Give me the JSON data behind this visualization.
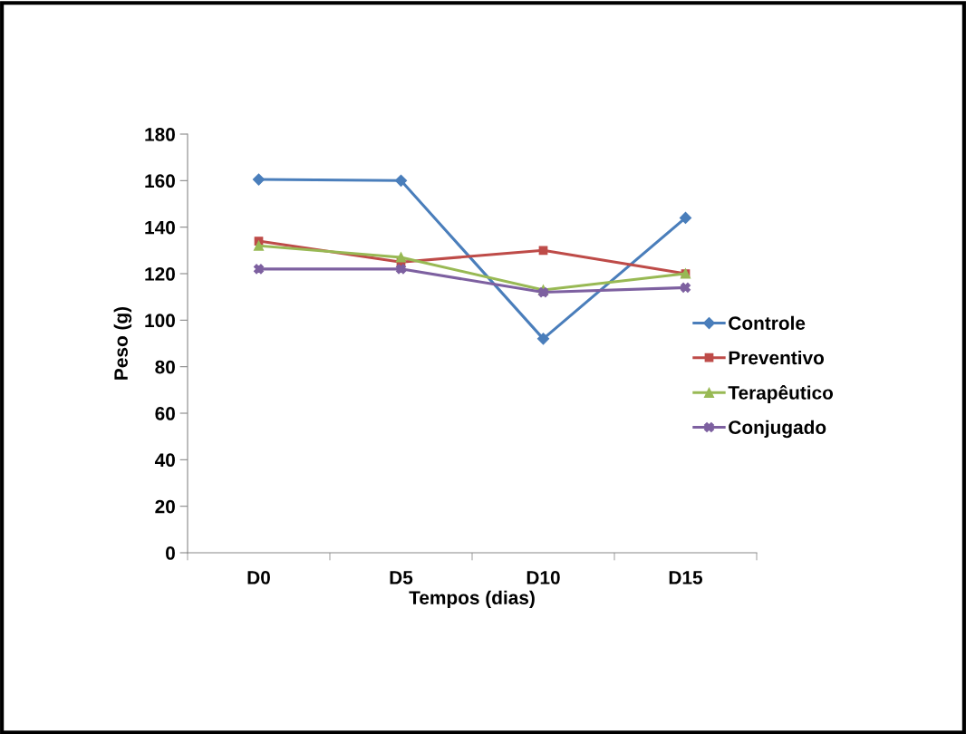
{
  "chart_data": {
    "type": "line",
    "xlabel": "Tempos (dias)",
    "ylabel": "Peso (g)",
    "categories": [
      "D0",
      "D5",
      "D10",
      "D15"
    ],
    "series": [
      {
        "name": "Controle",
        "color": "#4a7ebb",
        "marker": "diamond",
        "values": [
          160.5,
          160,
          92,
          144
        ]
      },
      {
        "name": "Preventivo",
        "color": "#be4b48",
        "marker": "square",
        "values": [
          134,
          125,
          130,
          120
        ]
      },
      {
        "name": "Terapêutico",
        "color": "#98b954",
        "marker": "triangle",
        "values": [
          132,
          127,
          113,
          120
        ]
      },
      {
        "name": "Conjugado",
        "color": "#7d60a0",
        "marker": "cross",
        "values": [
          122,
          122,
          112,
          114
        ]
      }
    ],
    "ylim": [
      0,
      180
    ],
    "yticks": [
      0,
      20,
      40,
      60,
      80,
      100,
      120,
      140,
      160,
      180
    ],
    "grid": false,
    "legend": "right",
    "line_style": "solid"
  }
}
